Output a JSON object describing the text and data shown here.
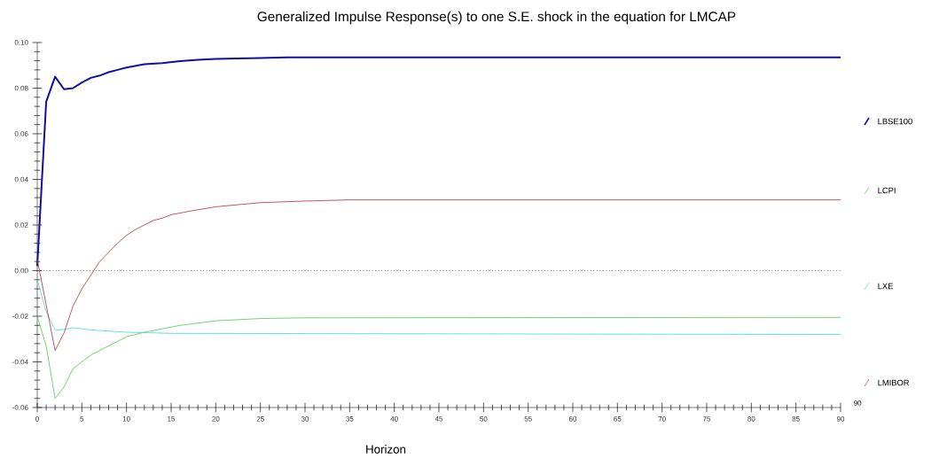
{
  "chart_data": {
    "type": "line",
    "title": "Generalized Impulse Response(s) to one S.E. shock in the equation for LMCAP",
    "xlabel": "Horizon",
    "xlim": [
      0,
      90
    ],
    "xticks": [
      0,
      5,
      10,
      15,
      20,
      25,
      30,
      35,
      40,
      45,
      50,
      55,
      60,
      65,
      70,
      75,
      80,
      85,
      90
    ],
    "ylim": [
      -0.06,
      0.1
    ],
    "yticks": [
      {
        "value": -0.06,
        "label": "-0.06"
      },
      {
        "value": -0.04,
        "label": "-0.04"
      },
      {
        "value": -0.02,
        "label": "-0.02"
      },
      {
        "value": 0,
        "label": "0.00"
      },
      {
        "value": 0.02,
        "label": "0.02"
      },
      {
        "value": 0.04,
        "label": "0.04"
      },
      {
        "value": 0.06,
        "label": "0.06"
      },
      {
        "value": 0.08,
        "label": "0.08"
      },
      {
        "value": 0.1,
        "label": "0.10"
      }
    ],
    "grid": false,
    "legend": "right",
    "line_style": "solid",
    "marker": "none",
    "ref_lines": [
      {
        "axis": "y",
        "value": 0,
        "color": "#333333",
        "line_style": "dotted"
      }
    ],
    "annotations": [
      "90"
    ],
    "series": [
      {
        "name": "LBSE100",
        "color": "#1010a0",
        "x": [
          0,
          1,
          2,
          3,
          4,
          5,
          6,
          7,
          8,
          9,
          10,
          12,
          14,
          16,
          18,
          20,
          25,
          28,
          90
        ],
        "values": [
          0.002,
          0.074,
          0.085,
          0.0795,
          0.08,
          0.0825,
          0.0845,
          0.0855,
          0.087,
          0.088,
          0.089,
          0.0905,
          0.091,
          0.0918,
          0.0924,
          0.0928,
          0.0932,
          0.0935,
          0.0935
        ]
      },
      {
        "name": "LCPI",
        "color": "#50c850",
        "x": [
          0,
          1,
          2,
          3,
          4,
          5,
          6,
          7,
          8,
          9,
          10,
          12,
          14,
          16,
          20,
          25,
          30,
          90
        ],
        "values": [
          -0.02,
          -0.033,
          -0.056,
          -0.051,
          -0.043,
          -0.04,
          -0.037,
          -0.035,
          -0.033,
          -0.031,
          -0.029,
          -0.027,
          -0.0255,
          -0.024,
          -0.022,
          -0.021,
          -0.0207,
          -0.0205
        ]
      },
      {
        "name": "LXE",
        "color": "#40d8d8",
        "x": [
          0,
          1,
          2,
          3,
          4,
          6,
          10,
          15,
          90
        ],
        "values": [
          -0.004,
          -0.018,
          -0.026,
          -0.0258,
          -0.025,
          -0.026,
          -0.027,
          -0.0275,
          -0.028
        ]
      },
      {
        "name": "LMIBOR",
        "color": "#b03030",
        "x": [
          0,
          1,
          2,
          3,
          4,
          5,
          6,
          7,
          8,
          9,
          10,
          11,
          12,
          13,
          14,
          15,
          17,
          20,
          25,
          30,
          35,
          90
        ],
        "values": [
          0.005,
          -0.015,
          -0.035,
          -0.0273,
          -0.0156,
          -0.008,
          -0.002,
          0.004,
          0.008,
          0.012,
          0.0155,
          0.018,
          0.02,
          0.022,
          0.023,
          0.0245,
          0.026,
          0.028,
          0.0298,
          0.0305,
          0.031,
          0.031
        ]
      }
    ]
  }
}
